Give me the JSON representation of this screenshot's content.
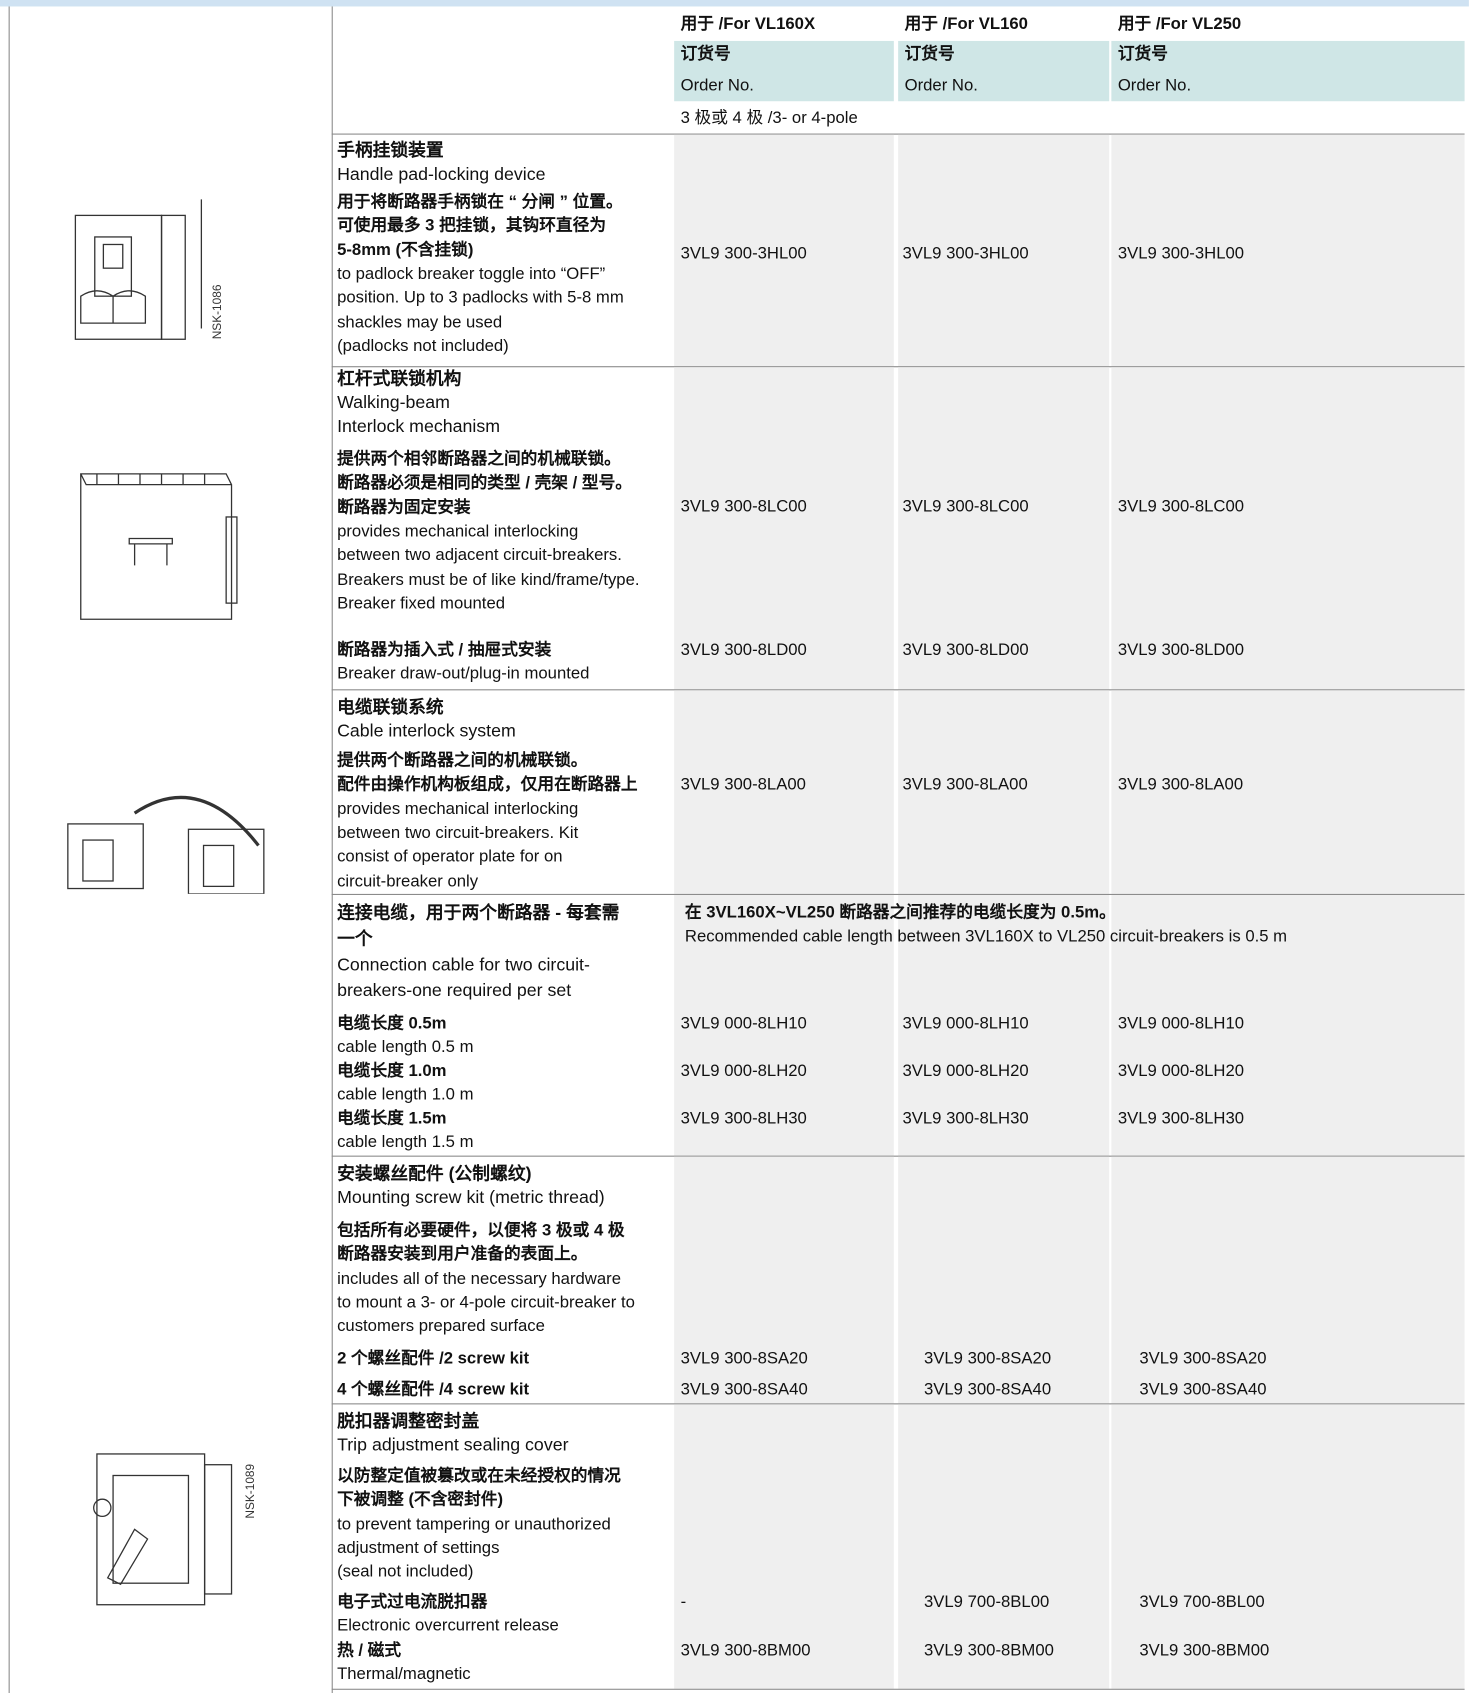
{
  "header": {
    "columns": [
      "用于 /For VL160X",
      "用于 /For VL160",
      "用于 /For VL250"
    ],
    "order_no_cn": "订货号",
    "order_no_en": "Order No.",
    "poles": "3 极或 4 极 /3- or 4-pole"
  },
  "sections": [
    {
      "title": [
        "手柄挂锁装置",
        "Handle pad-locking device"
      ],
      "description": [
        "用于将断路器手柄锁在 “ 分闸 ” 位置。",
        "可使用最多 3 把挂锁，其钩环直径为",
        "5-8mm (不含挂锁)",
        "to padlock breaker toggle into “OFF”",
        "position. Up to 3 padlocks with 5-8 mm",
        "shackles may be used",
        "(padlocks not included)"
      ],
      "rows": [
        {
          "order_nos": [
            "3VL9 300-3HL00",
            "3VL9 300-3HL00",
            "3VL9 300-3HL00"
          ]
        }
      ],
      "figure_label": "NSK-1086"
    },
    {
      "title": [
        "杠杆式联锁机构",
        "Walking-beam",
        "Interlock mechanism"
      ],
      "description": [
        "提供两个相邻断路器之间的机械联锁。",
        "断路器必须是相同的类型 / 壳架 / 型号。",
        "断路器为固定安装",
        "provides mechanical interlocking",
        "between two adjacent circuit-breakers.",
        "Breakers must be of like kind/frame/type.",
        "Breaker fixed mounted"
      ],
      "rows": [
        {
          "order_nos": [
            "3VL9 300-8LC00",
            "3VL9 300-8LC00",
            "3VL9 300-8LC00"
          ]
        },
        {
          "label": [
            "断路器为插入式 / 抽屉式安装",
            "Breaker draw-out/plug-in mounted"
          ],
          "order_nos": [
            "3VL9 300-8LD00",
            "3VL9 300-8LD00",
            "3VL9 300-8LD00"
          ]
        }
      ]
    },
    {
      "title": [
        "电缆联锁系统",
        "Cable interlock system"
      ],
      "description": [
        "提供两个断路器之间的机械联锁。",
        "配件由操作机构板组成，仅用在断路器上",
        "provides mechanical interlocking",
        "between two circuit-breakers. Kit",
        "consist of operator plate for on",
        "circuit-breaker only"
      ],
      "rows": [
        {
          "order_nos": [
            "3VL9 300-8LA00",
            "3VL9 300-8LA00",
            "3VL9 300-8LA00"
          ]
        }
      ]
    },
    {
      "title": [
        "连接电缆，用于两个断路器 - 每套需",
        "一个",
        "Connection cable for two circuit-",
        "breakers-one required per set"
      ],
      "note": [
        "在 3VL160X~VL250 断路器之间推荐的电缆长度为 0.5m。",
        "Recommended cable length between 3VL160X to VL250 circuit-breakers is 0.5 m"
      ],
      "rows": [
        {
          "label": [
            "电缆长度 0.5m",
            "cable length 0.5 m"
          ],
          "order_nos": [
            "3VL9 000-8LH10",
            "3VL9 000-8LH10",
            "3VL9 000-8LH10"
          ]
        },
        {
          "label": [
            "电缆长度 1.0m",
            "cable length 1.0 m"
          ],
          "order_nos": [
            "3VL9 000-8LH20",
            "3VL9 000-8LH20",
            "3VL9 000-8LH20"
          ]
        },
        {
          "label": [
            "电缆长度 1.5m",
            "cable length 1.5 m"
          ],
          "order_nos": [
            "3VL9 300-8LH30",
            "3VL9 300-8LH30",
            "3VL9 300-8LH30"
          ]
        }
      ]
    },
    {
      "title": [
        "安装螺丝配件 (公制螺纹)",
        "Mounting screw kit (metric thread)"
      ],
      "description": [
        "包括所有必要硬件，以便将 3 极或 4 极",
        "断路器安装到用户准备的表面上。",
        "includes all of the necessary hardware",
        "to mount a 3- or 4-pole circuit-breaker to",
        "customers prepared surface"
      ],
      "rows": [
        {
          "label": [
            "2 个螺丝配件 /2 screw kit"
          ],
          "order_nos": [
            "3VL9 300-8SA20",
            "3VL9 300-8SA20",
            "3VL9 300-8SA20"
          ]
        },
        {
          "label": [
            "4 个螺丝配件 /4 screw kit"
          ],
          "order_nos": [
            "3VL9 300-8SA40",
            "3VL9 300-8SA40",
            "3VL9 300-8SA40"
          ]
        }
      ]
    },
    {
      "title": [
        "脱扣器调整密封盖",
        "Trip adjustment sealing cover"
      ],
      "description": [
        "以防整定值被篡改或在未经授权的情况",
        "下被调整 (不含密封件)",
        "to prevent tampering or unauthorized",
        "adjustment of settings",
        "(seal not included)"
      ],
      "rows": [
        {
          "label": [
            "电子式过电流脱扣器",
            "Electronic overcurrent release"
          ],
          "order_nos": [
            "-",
            "3VL9 700-8BL00",
            "3VL9 700-8BL00"
          ]
        },
        {
          "label": [
            "热 / 磁式",
            "Thermal/magnetic"
          ],
          "order_nos": [
            "3VL9 300-8BM00",
            "3VL9 300-8BM00",
            "3VL9 300-8BM00"
          ]
        }
      ],
      "figure_label": "NSK-1089"
    }
  ]
}
